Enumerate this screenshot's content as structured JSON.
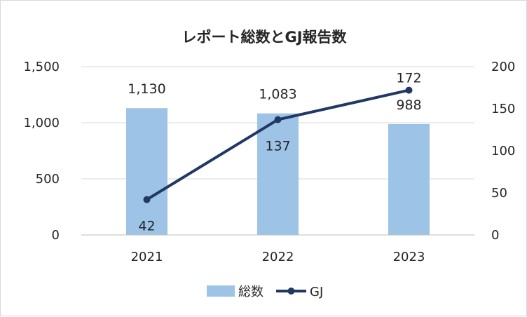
{
  "chart_data": {
    "type": "bar",
    "title": "レポート総数とGJ報告数",
    "categories": [
      "2021",
      "2022",
      "2023"
    ],
    "series": [
      {
        "name": "総数",
        "type": "bar",
        "axis": "left",
        "values": [
          1130,
          1083,
          988
        ],
        "labels": [
          "1,130",
          "1,083",
          "988"
        ],
        "color": "#9dc3e6"
      },
      {
        "name": "GJ",
        "type": "line",
        "axis": "right",
        "values": [
          42,
          137,
          172
        ],
        "labels": [
          "42",
          "137",
          "172"
        ],
        "color": "#203864"
      }
    ],
    "y_left": {
      "min": 0,
      "max": 1500,
      "ticks": [
        0,
        500,
        1000,
        1500
      ],
      "tick_labels": [
        "0",
        "500",
        "1,000",
        "1,500"
      ]
    },
    "y_right": {
      "min": 0,
      "max": 200,
      "ticks": [
        0,
        50,
        100,
        150,
        200
      ],
      "tick_labels": [
        "0",
        "50",
        "100",
        "150",
        "200"
      ]
    },
    "grid": true,
    "legend": "bottom"
  }
}
